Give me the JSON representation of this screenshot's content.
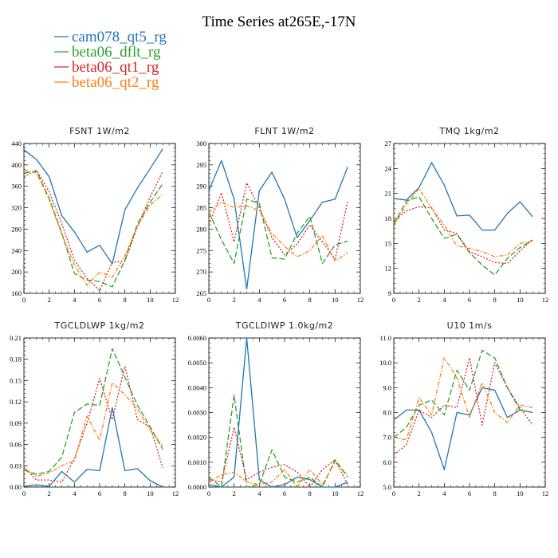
{
  "title": "Time Series at265E,-17N",
  "series_styles": [
    {
      "name": "cam078_qt5_rg",
      "color": "#1f77b4",
      "dash": ""
    },
    {
      "name": "beta06_dflt_rg",
      "color": "#2ca02c",
      "dash": "7,3"
    },
    {
      "name": "beta06_qt1_rg",
      "color": "#d62728",
      "dash": "2,2"
    },
    {
      "name": "beta06_qt2_rg",
      "color": "#ff7f0e",
      "dash": "5,2,1.5,2"
    }
  ],
  "chart_data": [
    {
      "type": "line",
      "title": "FSNT   1W/m2",
      "x": [
        0,
        1,
        2,
        3,
        4,
        5,
        6,
        7,
        8,
        9,
        10,
        11
      ],
      "xlim": [
        0,
        12
      ],
      "xticks": [
        "0",
        "2",
        "4",
        "6",
        "8",
        "10",
        "12"
      ],
      "ylim": [
        160,
        440
      ],
      "yticks": [
        "160",
        "200",
        "240",
        "280",
        "320",
        "360",
        "400",
        "440"
      ],
      "series": [
        {
          "name": "cam078_qt5_rg",
          "values": [
            428,
            410,
            378,
            305,
            275,
            237,
            250,
            215,
            316,
            357,
            393,
            430
          ]
        },
        {
          "name": "beta06_dflt_rg",
          "values": [
            385,
            388,
            338,
            273,
            197,
            185,
            182,
            172,
            222,
            290,
            330,
            365
          ]
        },
        {
          "name": "beta06_qt1_rg",
          "values": [
            378,
            390,
            350,
            290,
            222,
            188,
            165,
            218,
            220,
            285,
            340,
            388
          ]
        },
        {
          "name": "beta06_qt2_rg",
          "values": [
            390,
            385,
            335,
            270,
            213,
            175,
            200,
            190,
            230,
            285,
            325,
            345
          ]
        }
      ]
    },
    {
      "type": "line",
      "title": "FLNT   1W/m2",
      "x": [
        0,
        1,
        2,
        3,
        4,
        5,
        6,
        7,
        8,
        9,
        10,
        11
      ],
      "xlim": [
        0,
        12
      ],
      "xticks": [
        "0",
        "2",
        "4",
        "6",
        "8",
        "10",
        "12"
      ],
      "ylim": [
        265,
        300
      ],
      "yticks": [
        "265",
        "270",
        "275",
        "280",
        "285",
        "290",
        "295",
        "300"
      ],
      "series": [
        {
          "name": "cam078_qt5_rg",
          "values": [
            289,
            296,
            287,
            266,
            289,
            293.3,
            287,
            278,
            282,
            286.3,
            287,
            294.5
          ]
        },
        {
          "name": "beta06_dflt_rg",
          "values": [
            284,
            277.5,
            272,
            287,
            286,
            273.3,
            273,
            279,
            283,
            272,
            276.3,
            277.2
          ]
        },
        {
          "name": "beta06_qt1_rg",
          "values": [
            281,
            288.5,
            277,
            290.8,
            285,
            278,
            274,
            276.5,
            281,
            277,
            273,
            286.5
          ]
        },
        {
          "name": "beta06_qt2_rg",
          "values": [
            284,
            286.3,
            285,
            285.5,
            284.3,
            279,
            276,
            273.5,
            275,
            278.5,
            272.5,
            274.5
          ]
        }
      ]
    },
    {
      "type": "line",
      "title": "TMQ   1kg/m2",
      "x": [
        0,
        1,
        2,
        3,
        4,
        5,
        6,
        7,
        8,
        9,
        10,
        11
      ],
      "xlim": [
        0,
        12
      ],
      "xticks": [
        "0",
        "2",
        "4",
        "6",
        "8",
        "10",
        "12"
      ],
      "ylim": [
        9,
        27
      ],
      "yticks": [
        "9",
        "12",
        "15",
        "18",
        "21",
        "24",
        "27"
      ],
      "series": [
        {
          "name": "cam078_qt5_rg",
          "values": [
            20.4,
            20.2,
            21.7,
            24.7,
            22.0,
            18.3,
            18.4,
            16.6,
            16.6,
            18.6,
            20.0,
            18.2
          ]
        },
        {
          "name": "beta06_dflt_rg",
          "values": [
            17.3,
            20.1,
            20.6,
            18.0,
            15.6,
            16.1,
            13.9,
            12.4,
            11.2,
            13.2,
            14.5,
            15.4
          ]
        },
        {
          "name": "beta06_qt1_rg",
          "values": [
            17.7,
            18.9,
            19.4,
            19.3,
            16.6,
            16.2,
            14.0,
            13.4,
            12.7,
            12.6,
            14.1,
            15.5
          ]
        },
        {
          "name": "beta06_qt2_rg",
          "values": [
            17.0,
            19.7,
            21.6,
            19.2,
            17.2,
            14.7,
            14.4,
            14.0,
            13.4,
            13.6,
            15.0,
            15.3
          ]
        }
      ]
    },
    {
      "type": "line",
      "title": "TGCLDLWP   1kg/m2",
      "x": [
        0,
        1,
        2,
        3,
        4,
        5,
        6,
        7,
        8,
        9,
        10,
        11
      ],
      "xlim": [
        0,
        12
      ],
      "xticks": [
        "0",
        "2",
        "4",
        "6",
        "8",
        "10",
        "12"
      ],
      "ylim": [
        0,
        0.21
      ],
      "yticks": [
        "0.00",
        "0.03",
        "0.06",
        "0.09",
        "0.12",
        "0.15",
        "0.18",
        "0.21"
      ],
      "series": [
        {
          "name": "cam078_qt5_rg",
          "values": [
            0.001,
            0.003,
            0.001,
            0.022,
            0.007,
            0.025,
            0.023,
            0.112,
            0.023,
            0.026,
            0.009,
            0.0
          ]
        },
        {
          "name": "beta06_dflt_rg",
          "values": [
            0.024,
            0.018,
            0.022,
            0.042,
            0.105,
            0.117,
            0.115,
            0.195,
            0.155,
            0.115,
            0.085,
            0.053
          ]
        },
        {
          "name": "beta06_qt1_rg",
          "values": [
            0.028,
            0.01,
            0.01,
            0.007,
            0.04,
            0.09,
            0.153,
            0.095,
            0.17,
            0.095,
            0.085,
            0.027
          ]
        },
        {
          "name": "beta06_qt2_rg",
          "values": [
            0.027,
            0.015,
            0.02,
            0.03,
            0.037,
            0.1,
            0.066,
            0.147,
            0.13,
            0.11,
            0.08,
            0.058
          ]
        }
      ]
    },
    {
      "type": "line",
      "title": "TGCLDIWP   1.0kg/m2",
      "x": [
        0,
        1,
        2,
        3,
        4,
        5,
        6,
        7,
        8,
        9,
        10,
        11
      ],
      "xlim": [
        0,
        12
      ],
      "xticks": [
        "0",
        "2",
        "4",
        "6",
        "8",
        "10",
        "12"
      ],
      "ylim": [
        0,
        0.006
      ],
      "yticks": [
        "0.0000",
        "0.0010",
        "0.0020",
        "0.0030",
        "0.0040",
        "0.0050",
        "0.0060"
      ],
      "series": [
        {
          "name": "cam078_qt5_rg",
          "values": [
            0.0001,
            0.0,
            0.0004,
            0.006,
            0.0003,
            0.0,
            0.0001,
            0.0004,
            0.0003,
            0.0,
            0.0,
            0.0002
          ]
        },
        {
          "name": "beta06_dflt_rg",
          "values": [
            0.0004,
            0.0,
            0.0037,
            0.0,
            0.0001,
            0.0015,
            0.0004,
            0.0002,
            0.0004,
            0.0,
            0.0011,
            0.0004
          ]
        },
        {
          "name": "beta06_qt1_rg",
          "values": [
            0.0003,
            0.0002,
            0.0024,
            0.0003,
            0.0006,
            0.0008,
            0.0009,
            0.0006,
            0.0,
            0.0007,
            0.0011,
            0.0001
          ]
        },
        {
          "name": "beta06_qt2_rg",
          "values": [
            0.0002,
            0.0005,
            0.0006,
            0.0002,
            0.0001,
            0.0002,
            0.0007,
            0.0,
            0.0007,
            0.0001,
            0.001,
            0.0005
          ]
        }
      ]
    },
    {
      "type": "line",
      "title": "U10   1m/s",
      "x": [
        0,
        1,
        2,
        3,
        4,
        5,
        6,
        7,
        8,
        9,
        10,
        11
      ],
      "xlim": [
        0,
        12
      ],
      "xticks": [
        "0",
        "2",
        "4",
        "6",
        "8",
        "10",
        "12"
      ],
      "ylim": [
        5.0,
        11.0
      ],
      "yticks": [
        "5.0",
        "6.0",
        "7.0",
        "8.0",
        "9.0",
        "10.0",
        "11.0"
      ],
      "series": [
        {
          "name": "cam078_qt5_rg",
          "values": [
            7.7,
            8.1,
            8.1,
            7.2,
            5.7,
            8.0,
            7.9,
            9.0,
            8.9,
            7.8,
            8.1,
            8.0
          ]
        },
        {
          "name": "beta06_dflt_rg",
          "values": [
            7.0,
            7.4,
            8.3,
            8.5,
            7.9,
            9.7,
            8.9,
            10.5,
            10.2,
            9.0,
            8.1,
            8.0
          ]
        },
        {
          "name": "beta06_qt1_rg",
          "values": [
            6.3,
            6.7,
            8.1,
            7.8,
            8.3,
            8.2,
            10.2,
            7.5,
            10.0,
            9.0,
            8.2,
            7.5
          ]
        },
        {
          "name": "beta06_qt2_rg",
          "values": [
            7.0,
            6.9,
            8.6,
            7.9,
            10.2,
            9.4,
            7.8,
            9.2,
            8.0,
            7.6,
            8.3,
            8.2
          ]
        }
      ]
    }
  ]
}
